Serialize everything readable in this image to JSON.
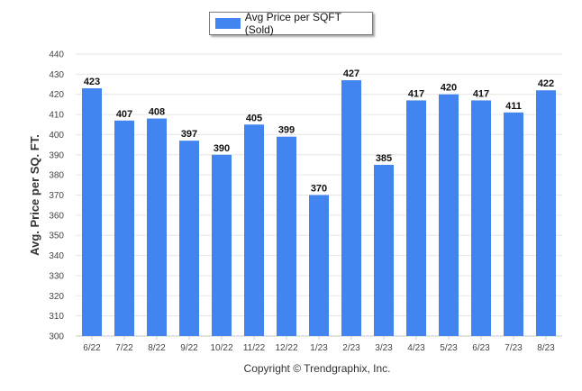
{
  "chart_data": {
    "type": "bar",
    "categories": [
      "6/22",
      "7/22",
      "8/22",
      "9/22",
      "10/22",
      "11/22",
      "12/22",
      "1/23",
      "2/23",
      "3/23",
      "4/23",
      "5/23",
      "6/23",
      "7/23",
      "8/23"
    ],
    "series": [
      {
        "name": "Avg Price per SQFT (Sold)",
        "values": [
          423,
          407,
          408,
          397,
          390,
          405,
          399,
          370,
          427,
          385,
          417,
          420,
          417,
          411,
          422
        ],
        "color": "#4385f0"
      }
    ],
    "ylabel": "Avg. Price per SQ. FT.",
    "xlabel": "",
    "ylim": [
      300,
      440
    ],
    "yticks": [
      300,
      310,
      320,
      330,
      340,
      350,
      360,
      370,
      380,
      390,
      400,
      410,
      420,
      430,
      440
    ],
    "grid": true,
    "legend_placement": "top-center",
    "footer": "Copyright © Trendgraphix, Inc."
  },
  "colors": {
    "bar": "#4385f0",
    "grid": "#e6e6e6",
    "axis": "#c8c8c8"
  }
}
